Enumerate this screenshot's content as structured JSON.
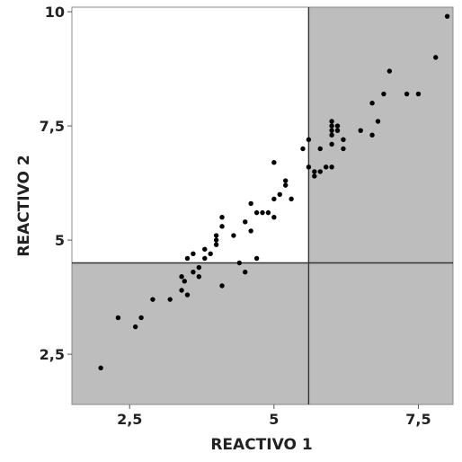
{
  "chart_data": {
    "type": "scatter",
    "title": "",
    "xlabel": "REACTIVO 1",
    "ylabel": "REACTIVO 2",
    "xlim": [
      1.5,
      8.1
    ],
    "ylim": [
      1.4,
      10.1
    ],
    "x_ticks": [
      2.5,
      5,
      7.5
    ],
    "x_tick_labels": [
      "2,5",
      "5",
      "7,5"
    ],
    "y_ticks": [
      2.5,
      5,
      7.5,
      10
    ],
    "y_tick_labels": [
      "2,5",
      "5",
      "7,5",
      "10"
    ],
    "cutoff_x": 5.6,
    "cutoff_y": 4.5,
    "shaded_color": "#bdbdbd",
    "point_color": "#000000",
    "x": [
      2.0,
      2.3,
      2.6,
      2.7,
      2.9,
      3.2,
      3.4,
      3.4,
      3.45,
      3.5,
      3.5,
      3.6,
      3.6,
      3.7,
      3.7,
      3.8,
      3.8,
      3.9,
      4.0,
      4.0,
      4.0,
      4.1,
      4.1,
      4.1,
      4.3,
      4.4,
      4.5,
      4.5,
      4.6,
      4.6,
      4.7,
      4.7,
      4.8,
      4.9,
      5.0,
      5.0,
      5.0,
      5.1,
      5.2,
      5.2,
      5.3,
      5.5,
      5.6,
      5.6,
      5.7,
      5.7,
      5.8,
      5.8,
      5.9,
      6.0,
      6.0,
      6.0,
      6.0,
      6.0,
      6.0,
      6.1,
      6.1,
      6.2,
      6.2,
      6.5,
      6.7,
      6.7,
      6.8,
      6.9,
      7.0,
      7.3,
      7.5,
      7.8,
      8.0
    ],
    "y": [
      2.2,
      3.3,
      3.1,
      3.3,
      3.7,
      3.7,
      3.9,
      4.2,
      4.1,
      3.8,
      4.6,
      4.3,
      4.7,
      4.2,
      4.4,
      4.6,
      4.8,
      4.7,
      4.9,
      5.0,
      5.1,
      4.0,
      5.3,
      5.5,
      5.1,
      4.5,
      4.3,
      5.4,
      5.2,
      5.8,
      4.6,
      5.6,
      5.6,
      5.6,
      5.5,
      5.9,
      6.7,
      6.0,
      6.2,
      6.3,
      5.9,
      7.0,
      6.6,
      7.2,
      6.4,
      6.5,
      6.5,
      7.0,
      6.6,
      6.6,
      7.1,
      7.3,
      7.4,
      7.5,
      7.6,
      7.4,
      7.5,
      7.0,
      7.2,
      7.4,
      7.3,
      8.0,
      7.6,
      8.2,
      8.7,
      8.2,
      8.2,
      9.0,
      9.9
    ]
  }
}
